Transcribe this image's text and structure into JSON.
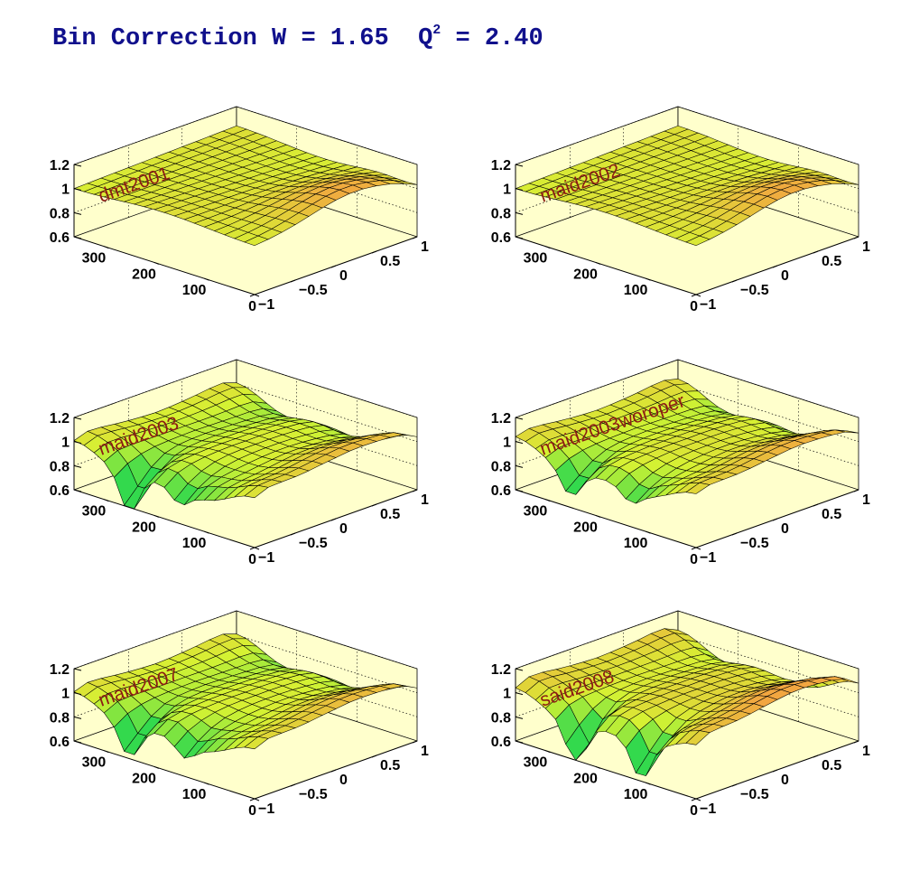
{
  "title": {
    "prefix": "Bin Correction W = 1.65  Q",
    "exponent": "2",
    "suffix": " = 2.40"
  },
  "colors": {
    "title": "#10108c",
    "panel_title": "#8c1c14",
    "back_walls": "#ffffcc",
    "surface_low": "#33d94d",
    "surface_mid": "#d6f233",
    "surface_high": "#f2a640",
    "mesh": "#000000"
  },
  "chart_data": [
    {
      "type": "surface",
      "title": "dmt2001",
      "z_ticks": [
        "0.6",
        "0.8",
        "1",
        "1.2"
      ],
      "x_ticks": [
        "300",
        "200",
        "100",
        "0"
      ],
      "y_ticks": [
        "−1",
        "−0.5",
        "0",
        "0.5",
        "1"
      ],
      "zlim": [
        0.6,
        1.2
      ],
      "xlim": [
        0,
        360
      ],
      "ylim": [
        -1,
        1
      ],
      "surface": {
        "shape": "smooth",
        "base": 1.02,
        "high_phi_bump": 0.14,
        "edge_drop": 0.0,
        "dips": []
      }
    },
    {
      "type": "surface",
      "title": "maid2002",
      "z_ticks": [
        "0.6",
        "0.8",
        "1",
        "1.2"
      ],
      "x_ticks": [
        "300",
        "200",
        "100",
        "0"
      ],
      "y_ticks": [
        "−1",
        "−0.5",
        "0",
        "0.5",
        "1"
      ],
      "zlim": [
        0.6,
        1.2
      ],
      "xlim": [
        0,
        360
      ],
      "ylim": [
        -1,
        1
      ],
      "surface": {
        "shape": "smooth",
        "base": 1.02,
        "high_phi_bump": 0.14,
        "edge_drop": 0.0,
        "dips": []
      }
    },
    {
      "type": "surface",
      "title": "maid2003",
      "z_ticks": [
        "0.6",
        "0.8",
        "1",
        "1.2"
      ],
      "x_ticks": [
        "300",
        "200",
        "100",
        "0"
      ],
      "y_ticks": [
        "−1",
        "−0.5",
        "0",
        "0.5",
        "1"
      ],
      "zlim": [
        0.6,
        1.2
      ],
      "xlim": [
        0,
        360
      ],
      "ylim": [
        -1,
        1
      ],
      "surface": {
        "shape": "wavy",
        "base": 0.98,
        "high_phi_bump": 0.12,
        "edge_drop": 0.12,
        "dips": [
          {
            "phi": 250,
            "cos": -1,
            "depth": 0.3
          },
          {
            "phi": 150,
            "cos": -1,
            "depth": 0.12
          }
        ]
      }
    },
    {
      "type": "surface",
      "title": "maid2003woroper",
      "z_ticks": [
        "0.6",
        "0.8",
        "1",
        "1.2"
      ],
      "x_ticks": [
        "300",
        "200",
        "100",
        "0"
      ],
      "y_ticks": [
        "−1",
        "−0.5",
        "0",
        "0.5",
        "1"
      ],
      "zlim": [
        0.6,
        1.2
      ],
      "xlim": [
        0,
        360
      ],
      "ylim": [
        -1,
        1
      ],
      "surface": {
        "shape": "wavy",
        "base": 1.0,
        "high_phi_bump": 0.12,
        "edge_drop": 0.1,
        "dips": [
          {
            "phi": 250,
            "cos": -1,
            "depth": 0.2
          },
          {
            "phi": 130,
            "cos": -1,
            "depth": 0.1
          }
        ]
      }
    },
    {
      "type": "surface",
      "title": "maid2007",
      "z_ticks": [
        "0.6",
        "0.8",
        "1",
        "1.2"
      ],
      "x_ticks": [
        "300",
        "200",
        "100",
        "0"
      ],
      "y_ticks": [
        "−1",
        "−0.5",
        "0",
        "0.5",
        "1"
      ],
      "zlim": [
        0.6,
        1.2
      ],
      "xlim": [
        0,
        360
      ],
      "ylim": [
        -1,
        1
      ],
      "surface": {
        "shape": "wavy",
        "base": 0.98,
        "high_phi_bump": 0.12,
        "edge_drop": 0.12,
        "dips": [
          {
            "phi": 250,
            "cos": -1,
            "depth": 0.25
          },
          {
            "phi": 140,
            "cos": -1,
            "depth": 0.12
          }
        ]
      }
    },
    {
      "type": "surface",
      "title": "said2008",
      "z_ticks": [
        "0.6",
        "0.8",
        "1",
        "1.2"
      ],
      "x_ticks": [
        "300",
        "200",
        "100",
        "0"
      ],
      "y_ticks": [
        "−1",
        "−0.5",
        "0",
        "0.5",
        "1"
      ],
      "zlim": [
        0.6,
        1.2
      ],
      "xlim": [
        0,
        360
      ],
      "ylim": [
        -1,
        1
      ],
      "surface": {
        "shape": "wavy",
        "base": 1.03,
        "high_phi_bump": 0.15,
        "edge_drop": 0.15,
        "dips": [
          {
            "phi": 240,
            "cos": -1,
            "depth": 0.35
          },
          {
            "phi": 110,
            "cos": -1,
            "depth": 0.28
          }
        ]
      }
    }
  ]
}
